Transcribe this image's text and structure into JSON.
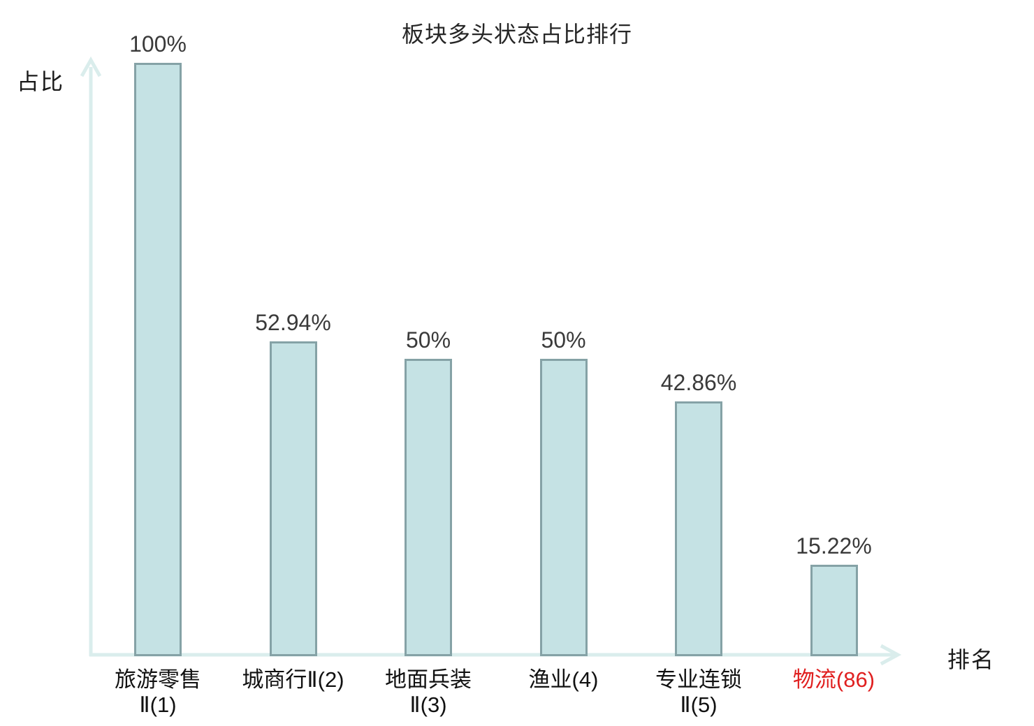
{
  "chart_data": {
    "type": "bar",
    "title": "板块多头状态占比排行",
    "xlabel": "排名",
    "ylabel": "占比",
    "ylim": [
      0,
      100
    ],
    "unit": "%",
    "grid": false,
    "legend": "none",
    "categories": [
      "旅游零售Ⅱ(1)",
      "城商行Ⅱ(2)",
      "地面兵装Ⅱ(3)",
      "渔业(4)",
      "专业连锁Ⅱ(5)",
      "物流(86)"
    ],
    "values": [
      100,
      52.94,
      50,
      50,
      42.86,
      15.22
    ],
    "bars": [
      {
        "label_lines": [
          "旅游零售",
          "Ⅱ(1)"
        ],
        "value": 100,
        "value_label": "100%",
        "highlighted": false
      },
      {
        "label_lines": [
          "城商行Ⅱ(2)"
        ],
        "value": 52.94,
        "value_label": "52.94%",
        "highlighted": false
      },
      {
        "label_lines": [
          "地面兵装",
          "Ⅱ(3)"
        ],
        "value": 50,
        "value_label": "50%",
        "highlighted": false
      },
      {
        "label_lines": [
          "渔业(4)"
        ],
        "value": 50,
        "value_label": "50%",
        "highlighted": false
      },
      {
        "label_lines": [
          "专业连锁",
          "Ⅱ(5)"
        ],
        "value": 42.86,
        "value_label": "42.86%",
        "highlighted": false
      },
      {
        "label_lines": [
          "物流(86)"
        ],
        "value": 15.22,
        "value_label": "15.22%",
        "highlighted": true
      }
    ],
    "colors": {
      "bar_fill": "#c5e2e4",
      "bar_border": "#85a2a6",
      "axis": "#daedec",
      "title_text": "#262626",
      "category_text": "#111111",
      "value_text": "#3a3a3a",
      "highlight_text": "#e02020",
      "background": "#ffffff"
    }
  }
}
